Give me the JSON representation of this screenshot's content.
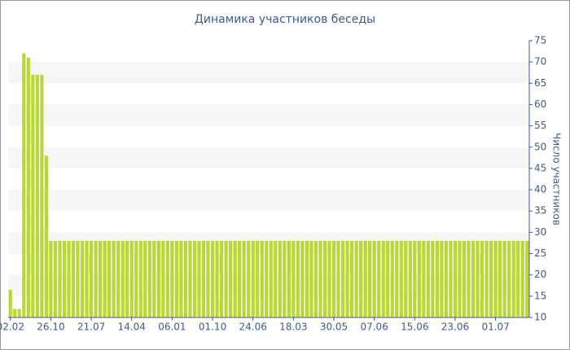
{
  "chart_data": {
    "type": "bar",
    "title": "Динамика участников беседы",
    "y_label": "Число участников",
    "color": "#b8d935",
    "categories": [
      "02.02",
      null,
      null,
      null,
      null,
      null,
      null,
      null,
      null,
      "26.10",
      null,
      null,
      null,
      null,
      null,
      null,
      null,
      null,
      "21.07",
      null,
      null,
      null,
      null,
      null,
      null,
      null,
      null,
      "14.04",
      null,
      null,
      null,
      null,
      null,
      null,
      null,
      null,
      "06.01",
      null,
      null,
      null,
      null,
      null,
      null,
      null,
      null,
      "01.10",
      null,
      null,
      null,
      null,
      null,
      null,
      null,
      null,
      "24.06",
      null,
      null,
      null,
      null,
      null,
      null,
      null,
      null,
      "18.03",
      null,
      null,
      null,
      null,
      null,
      null,
      null,
      null,
      "30.05",
      null,
      null,
      null,
      null,
      null,
      null,
      null,
      null,
      "07.06",
      null,
      null,
      null,
      null,
      null,
      null,
      null,
      null,
      "15.06",
      null,
      null,
      null,
      null,
      null,
      null,
      null,
      null,
      "23.06",
      null,
      null,
      null,
      null,
      null,
      null,
      null,
      null,
      "01.07",
      null,
      null,
      null,
      null,
      null,
      null,
      null
    ],
    "values": [
      16.5,
      12,
      12,
      72,
      71,
      67,
      67,
      67,
      48,
      28,
      28,
      28,
      28,
      28,
      28,
      28,
      28,
      28,
      28,
      28,
      28,
      28,
      28,
      28,
      28,
      28,
      28,
      28,
      28,
      28,
      28,
      28,
      28,
      28,
      28,
      28,
      28,
      28,
      28,
      28,
      28,
      28,
      28,
      28,
      28,
      28,
      28,
      28,
      28,
      28,
      28,
      28,
      28,
      28,
      28,
      28,
      28,
      28,
      28,
      28,
      28,
      28,
      28,
      28,
      28,
      28,
      28,
      28,
      28,
      28,
      28,
      28,
      28,
      28,
      28,
      28,
      28,
      28,
      28,
      28,
      28,
      28,
      28,
      28,
      28,
      28,
      28,
      28,
      28,
      28,
      28,
      28,
      28,
      28,
      28,
      28,
      28,
      28,
      28,
      28,
      28,
      28,
      28,
      28,
      28,
      28,
      28,
      28,
      28,
      28,
      28,
      28,
      28,
      28,
      28,
      28
    ],
    "ylim": [
      10,
      75
    ],
    "yticks": [
      10,
      15,
      20,
      25,
      30,
      35,
      40,
      45,
      50,
      55,
      60,
      65,
      70,
      75
    ],
    "y_axis_side": "right",
    "bands": true
  }
}
